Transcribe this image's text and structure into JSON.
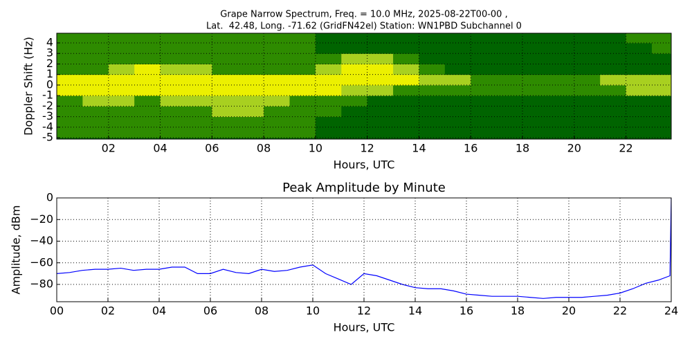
{
  "chart_data": [
    {
      "type": "heatmap",
      "title": "Grape Narrow Spectrum, Freq. = 10.0 MHz, 2025-08-22T00-00 ,",
      "subtitle": "Lat.  42.48, Long. -71.62 (GridFN42el) Station: WN1PBD Subchannel 0",
      "xlabel": "Hours, UTC",
      "ylabel": "Doppler Shift (Hz)",
      "xlim": [
        0,
        23.75
      ],
      "ylim": [
        -5.13,
        4.92
      ],
      "xticks": [
        {
          "value": 2,
          "label": "02"
        },
        {
          "value": 4,
          "label": "04"
        },
        {
          "value": 6,
          "label": "06"
        },
        {
          "value": 8,
          "label": "08"
        },
        10,
        12,
        14,
        16,
        18,
        20,
        22
      ],
      "yticks": [
        -5,
        -4,
        -3,
        -2,
        -1,
        0,
        1,
        2,
        3,
        4
      ],
      "grid": true,
      "colors": [
        "#006400",
        "#2e8b00",
        "#a8d020",
        "#ecf000"
      ],
      "x_bins": [
        0,
        1,
        2,
        3,
        4,
        5,
        6,
        7,
        8,
        9,
        10,
        11,
        12,
        13,
        14,
        15,
        16,
        17,
        18,
        19,
        20,
        21,
        22,
        23,
        24
      ],
      "y_bins": [
        -5,
        -4,
        -3,
        -2,
        -1,
        0,
        1,
        2,
        3,
        4,
        5
      ],
      "values": [
        [
          1,
          1,
          1,
          1,
          3,
          3,
          1,
          1,
          1,
          1
        ],
        [
          1,
          1,
          1,
          2,
          3,
          3,
          1,
          1,
          1,
          1
        ],
        [
          1,
          1,
          1,
          2,
          3,
          3,
          2,
          1,
          1,
          1
        ],
        [
          1,
          1,
          1,
          1,
          3,
          3,
          3,
          1,
          1,
          1
        ],
        [
          1,
          1,
          1,
          2,
          3,
          3,
          2,
          1,
          1,
          1
        ],
        [
          1,
          1,
          1,
          2,
          3,
          3,
          2,
          1,
          1,
          1
        ],
        [
          1,
          1,
          2,
          2,
          3,
          3,
          1,
          1,
          1,
          1
        ],
        [
          1,
          1,
          2,
          2,
          3,
          3,
          1,
          1,
          1,
          1
        ],
        [
          1,
          1,
          1,
          2,
          3,
          3,
          1,
          1,
          1,
          1
        ],
        [
          1,
          1,
          1,
          1,
          3,
          3,
          1,
          1,
          1,
          1
        ],
        [
          0,
          0,
          1,
          1,
          3,
          3,
          2,
          1,
          0,
          0
        ],
        [
          0,
          0,
          0,
          1,
          2,
          3,
          3,
          2,
          0,
          0
        ],
        [
          0,
          0,
          0,
          0,
          2,
          3,
          3,
          2,
          0,
          0
        ],
        [
          0,
          0,
          0,
          0,
          1,
          3,
          2,
          1,
          0,
          0
        ],
        [
          0,
          0,
          0,
          0,
          1,
          2,
          1,
          0,
          0,
          0
        ],
        [
          0,
          0,
          0,
          0,
          1,
          2,
          0,
          0,
          0,
          0
        ],
        [
          0,
          0,
          0,
          0,
          1,
          1,
          0,
          0,
          0,
          0
        ],
        [
          0,
          0,
          0,
          0,
          1,
          1,
          0,
          0,
          0,
          0
        ],
        [
          0,
          0,
          0,
          0,
          1,
          1,
          0,
          0,
          0,
          0
        ],
        [
          0,
          0,
          0,
          0,
          1,
          1,
          0,
          0,
          0,
          0
        ],
        [
          0,
          0,
          0,
          0,
          1,
          1,
          0,
          0,
          0,
          0
        ],
        [
          0,
          0,
          0,
          0,
          1,
          2,
          0,
          0,
          0,
          0
        ],
        [
          0,
          0,
          0,
          0,
          2,
          2,
          0,
          0,
          0,
          1
        ],
        [
          0,
          0,
          0,
          0,
          2,
          2,
          0,
          0,
          1,
          1
        ]
      ]
    },
    {
      "type": "line",
      "title": "Peak Amplitude by Minute",
      "xlabel": "Hours, UTC",
      "ylabel": "Amplitude, dBm",
      "xlim": [
        0,
        24
      ],
      "ylim": [
        -96,
        0
      ],
      "xticks": [
        {
          "value": 0,
          "label": "00"
        },
        {
          "value": 2,
          "label": "02"
        },
        {
          "value": 4,
          "label": "04"
        },
        {
          "value": 6,
          "label": "06"
        },
        {
          "value": 8,
          "label": "08"
        },
        10,
        12,
        14,
        16,
        18,
        20,
        22,
        24
      ],
      "yticks": [
        0,
        {
          "value": -20,
          "label": "−20"
        },
        {
          "value": -40,
          "label": "−40"
        },
        {
          "value": -60,
          "label": "−60"
        },
        {
          "value": -80,
          "label": "−80"
        }
      ],
      "grid": true,
      "x": [
        0,
        0.5,
        1,
        1.5,
        2,
        2.5,
        3,
        3.5,
        4,
        4.5,
        5,
        5.5,
        6,
        6.5,
        7,
        7.5,
        8,
        8.5,
        9,
        9.5,
        10,
        10.5,
        11,
        11.5,
        12,
        12.5,
        13,
        13.5,
        14,
        14.5,
        15,
        15.5,
        16,
        16.5,
        17,
        17.5,
        18,
        18.5,
        19,
        19.5,
        20,
        20.5,
        21,
        21.5,
        22,
        22.5,
        23,
        23.5,
        23.95,
        24
      ],
      "series": [
        {
          "color": "#0000ff",
          "values": [
            -70,
            -69,
            -67,
            -66,
            -66,
            -65,
            -67,
            -66,
            -66,
            -64,
            -64,
            -70,
            -70,
            -66,
            -69,
            -70,
            -66,
            -68,
            -67,
            -64,
            -62,
            -70,
            -75,
            -80,
            -70,
            -72,
            -76,
            -80,
            -83,
            -84,
            -84,
            -86,
            -89,
            -90,
            -91,
            -91,
            -91,
            -92,
            -93,
            -92,
            -92,
            -92,
            -91,
            -90,
            -88,
            -84,
            -79,
            -76,
            -72,
            0
          ]
        }
      ]
    }
  ]
}
